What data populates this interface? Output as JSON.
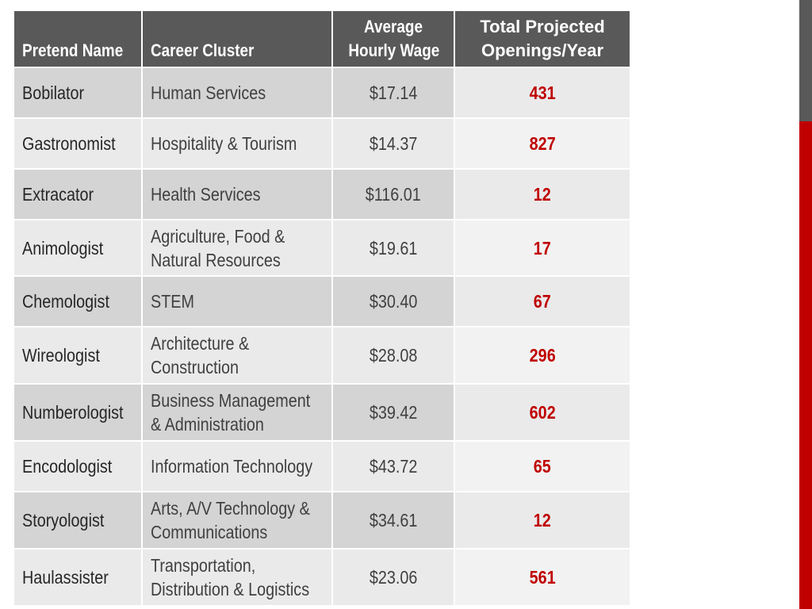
{
  "table": {
    "headers": {
      "name": "Pretend Name",
      "cluster": "Career Cluster",
      "wage_line1": "Average",
      "wage_line2": "Hourly Wage",
      "openings_line1": "Total Projected",
      "openings_line2": "Openings/Year"
    },
    "rows": [
      {
        "name": "Bobilator",
        "cluster_line1": "Human Services",
        "cluster_line2": "",
        "wage": "$17.14",
        "openings": "431"
      },
      {
        "name": "Gastronomist",
        "cluster_line1": "Hospitality & Tourism",
        "cluster_line2": "",
        "wage": "$14.37",
        "openings": "827"
      },
      {
        "name": "Extracator",
        "cluster_line1": "Health Services",
        "cluster_line2": "",
        "wage": "$116.01",
        "openings": "12"
      },
      {
        "name": "Animologist",
        "cluster_line1": "Agriculture, Food &",
        "cluster_line2": "Natural Resources",
        "wage": "$19.61",
        "openings": "17"
      },
      {
        "name": "Chemologist",
        "cluster_line1": "STEM",
        "cluster_line2": "",
        "wage": "$30.40",
        "openings": "67"
      },
      {
        "name": "Wireologist",
        "cluster_line1": "Architecture &",
        "cluster_line2": "Construction",
        "wage": "$28.08",
        "openings": "296"
      },
      {
        "name": "Numberologist",
        "cluster_line1": "Business Management",
        "cluster_line2": "& Administration",
        "wage": "$39.42",
        "openings": "602"
      },
      {
        "name": "Encodologist",
        "cluster_line1": "Information Technology",
        "cluster_line2": "",
        "wage": "$43.72",
        "openings": "65"
      },
      {
        "name": "Storyologist",
        "cluster_line1": "Arts, A/V Technology &",
        "cluster_line2": "Communications",
        "wage": "$34.61",
        "openings": "12"
      },
      {
        "name": "Haulassister",
        "cluster_line1": "Transportation,",
        "cluster_line2": "Distribution & Logistics",
        "wage": "$23.06",
        "openings": "561"
      }
    ]
  },
  "colors": {
    "header_bg": "#595959",
    "row_dark": "#d4d4d4",
    "row_light": "#eaeaea",
    "accent_red": "#c00000"
  }
}
